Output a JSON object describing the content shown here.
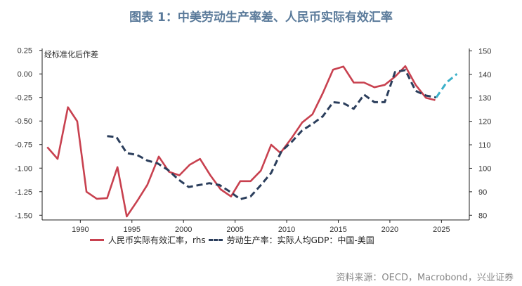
{
  "header": {
    "title": "图表 1：中美劳动生产率差、人民币实际有效汇率"
  },
  "footer": {
    "source": "资料来源：OECD，Macrobond，兴业证券"
  },
  "chart_data": {
    "type": "line",
    "note": "经标准化后作差",
    "x_ticks": [
      1990,
      1995,
      2000,
      2005,
      2010,
      2015,
      2020,
      2025
    ],
    "xlim": [
      1986.3,
      2027.7
    ],
    "left_axis": {
      "ticks": [
        "0.25",
        "0.00",
        "-0.25",
        "-0.50",
        "-0.75",
        "-1.00",
        "-1.25",
        "-1.50"
      ],
      "ylim": [
        -1.55,
        0.27
      ]
    },
    "right_axis": {
      "ticks": [
        "150",
        "140",
        "130",
        "120",
        "110",
        "100",
        "90",
        "80"
      ],
      "ylim": [
        78,
        151
      ]
    },
    "series": [
      {
        "name": "人民币实际有效汇率，rhs",
        "axis": "right",
        "style": "solid",
        "color": "#c8414f",
        "points": [
          [
            1986.8,
            109
          ],
          [
            1987.8,
            104
          ],
          [
            1988.8,
            126
          ],
          [
            1989.7,
            120
          ],
          [
            1990.6,
            90
          ],
          [
            1991.6,
            87
          ],
          [
            1992.6,
            87.3
          ],
          [
            1993.6,
            100.5
          ],
          [
            1994.5,
            79.5
          ],
          [
            1995.5,
            86
          ],
          [
            1996.5,
            93
          ],
          [
            1997.6,
            105
          ],
          [
            1998.6,
            98.5
          ],
          [
            1999.6,
            97
          ],
          [
            2000.6,
            101.5
          ],
          [
            2001.6,
            104
          ],
          [
            2002.6,
            97
          ],
          [
            2003.6,
            91
          ],
          [
            2004.6,
            88
          ],
          [
            2005.5,
            94.5
          ],
          [
            2006.5,
            94.5
          ],
          [
            2007.5,
            99
          ],
          [
            2008.5,
            110
          ],
          [
            2009.4,
            106.5
          ],
          [
            2010.5,
            113
          ],
          [
            2011.5,
            119.5
          ],
          [
            2012.5,
            123
          ],
          [
            2013.5,
            132
          ],
          [
            2014.5,
            142
          ],
          [
            2015.5,
            143.3
          ],
          [
            2016.5,
            136.5
          ],
          [
            2017.5,
            136.5
          ],
          [
            2018.5,
            134.5
          ],
          [
            2019.5,
            135.5
          ],
          [
            2020.5,
            139
          ],
          [
            2021.5,
            143.5
          ],
          [
            2022.5,
            135.5
          ],
          [
            2023.5,
            130
          ],
          [
            2024.4,
            129
          ]
        ]
      },
      {
        "name": "劳动生产率：实际人均GDP：中国-美国",
        "axis": "left",
        "style": "dashed",
        "color": "#2b3e5c",
        "points": [
          [
            1992.6,
            -0.66
          ],
          [
            1993.5,
            -0.67
          ],
          [
            1994.5,
            -0.84
          ],
          [
            1995.5,
            -0.86
          ],
          [
            1996.5,
            -0.92
          ],
          [
            1997.5,
            -0.95
          ],
          [
            1998.5,
            -1.02
          ],
          [
            1999.5,
            -1.12
          ],
          [
            2000.5,
            -1.2
          ],
          [
            2001.5,
            -1.18
          ],
          [
            2002.5,
            -1.16
          ],
          [
            2003.5,
            -1.18
          ],
          [
            2004.5,
            -1.25
          ],
          [
            2005.5,
            -1.33
          ],
          [
            2006.5,
            -1.3
          ],
          [
            2007.5,
            -1.18
          ],
          [
            2008.5,
            -1.05
          ],
          [
            2009.5,
            -0.82
          ],
          [
            2010.5,
            -0.72
          ],
          [
            2011.5,
            -0.6
          ],
          [
            2012.5,
            -0.53
          ],
          [
            2013.5,
            -0.45
          ],
          [
            2014.5,
            -0.3
          ],
          [
            2015.5,
            -0.31
          ],
          [
            2016.5,
            -0.37
          ],
          [
            2017.5,
            -0.22
          ],
          [
            2018.5,
            -0.3
          ],
          [
            2019.5,
            -0.3
          ],
          [
            2020.5,
            0.02
          ],
          [
            2021.5,
            0.04
          ],
          [
            2022.5,
            -0.18
          ],
          [
            2023.5,
            -0.23
          ],
          [
            2024.5,
            -0.25
          ]
        ]
      },
      {
        "name": "",
        "axis": "left",
        "style": "dashed",
        "color": "#3bb0c9",
        "points": [
          [
            2024.5,
            -0.25
          ],
          [
            2025.5,
            -0.09
          ],
          [
            2026.5,
            0.0
          ]
        ]
      }
    ]
  }
}
